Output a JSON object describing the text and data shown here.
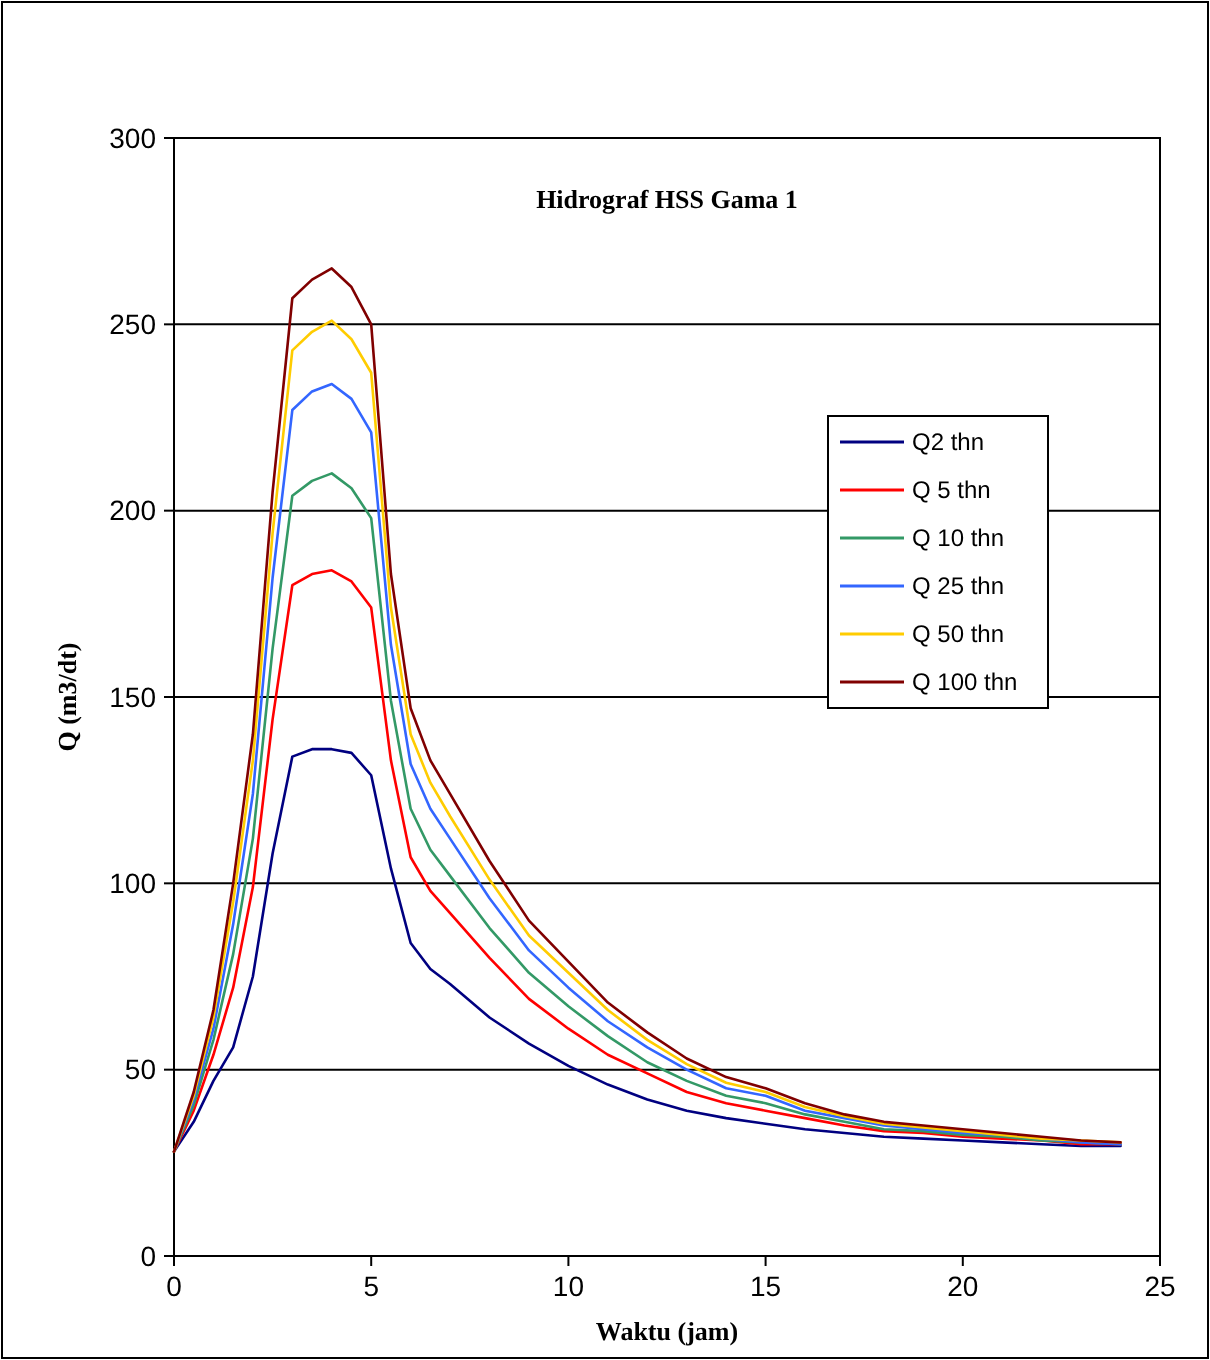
{
  "chart_data": {
    "type": "line",
    "title": "Hidrograf HSS Gama 1",
    "xlabel": "Waktu (jam)",
    "ylabel": "Q (m3/dt)",
    "x": [
      0,
      0.5,
      1,
      1.5,
      2,
      2.5,
      3,
      3.5,
      4,
      4.5,
      5,
      5.5,
      6,
      6.5,
      7,
      8,
      9,
      10,
      11,
      12,
      13,
      14,
      15,
      16,
      17,
      18,
      19,
      20,
      21,
      22,
      23,
      24
    ],
    "xlim": [
      0,
      25
    ],
    "xticks": [
      0,
      5,
      10,
      15,
      20,
      25
    ],
    "ylim": [
      0,
      300
    ],
    "yticks": [
      0,
      50,
      100,
      150,
      200,
      250,
      300
    ],
    "grid": "y",
    "legend": "right",
    "marker": "none",
    "line_style": "solid",
    "series": [
      {
        "name": "Q2 thn",
        "color": "#000080",
        "values": [
          28,
          36,
          47,
          56,
          75,
          108,
          134,
          136,
          136,
          135,
          129,
          104,
          84,
          77,
          73,
          64,
          57,
          51,
          46,
          42,
          39,
          37,
          35.5,
          34,
          33,
          32,
          31.5,
          31,
          30.5,
          30,
          29.5,
          29.5
        ]
      },
      {
        "name": "Q 5 thn",
        "color": "#ff0000",
        "values": [
          28,
          39,
          54,
          72,
          99,
          144,
          180,
          183,
          184,
          181,
          174,
          133,
          107,
          98,
          92,
          80,
          69,
          61,
          54,
          49,
          44,
          41,
          39,
          37,
          35,
          33.5,
          33,
          32,
          31.5,
          31,
          30,
          30
        ]
      },
      {
        "name": "Q 10 thn",
        "color": "#339966",
        "values": [
          28,
          40.5,
          58,
          81,
          112,
          163,
          204,
          208,
          210,
          206,
          198,
          149,
          120,
          109,
          102,
          88,
          76,
          67,
          59,
          52,
          47,
          43,
          41,
          38,
          36,
          34,
          33.5,
          32.5,
          32,
          31,
          30.5,
          30
        ]
      },
      {
        "name": "Q 25 thn",
        "color": "#3366ff",
        "values": [
          28,
          42,
          61,
          89,
          124,
          182,
          227,
          232,
          234,
          230,
          221,
          164,
          132,
          120,
          112,
          96,
          82,
          72,
          63,
          56,
          50,
          45,
          43,
          39,
          37,
          35,
          34,
          33,
          32.5,
          31.5,
          30.5,
          30
        ]
      },
      {
        "name": "Q 50 thn",
        "color": "#ffcc00",
        "values": [
          28,
          43,
          64,
          95,
          133,
          194,
          243,
          248,
          251,
          246,
          237,
          174,
          140,
          127,
          118,
          101,
          86,
          76,
          66,
          58,
          51.5,
          46.5,
          44,
          40,
          37.5,
          35.5,
          34.5,
          33.5,
          32.5,
          31.5,
          31,
          30.5
        ]
      },
      {
        "name": "Q 100 thn",
        "color": "#800000",
        "values": [
          28,
          44,
          66,
          100,
          140,
          205,
          257,
          262,
          265,
          260,
          250,
          183,
          147,
          133,
          124,
          106,
          90,
          79,
          68,
          60,
          53,
          48,
          45,
          41,
          38,
          36,
          35,
          34,
          33,
          32,
          31,
          30.5
        ]
      }
    ]
  }
}
